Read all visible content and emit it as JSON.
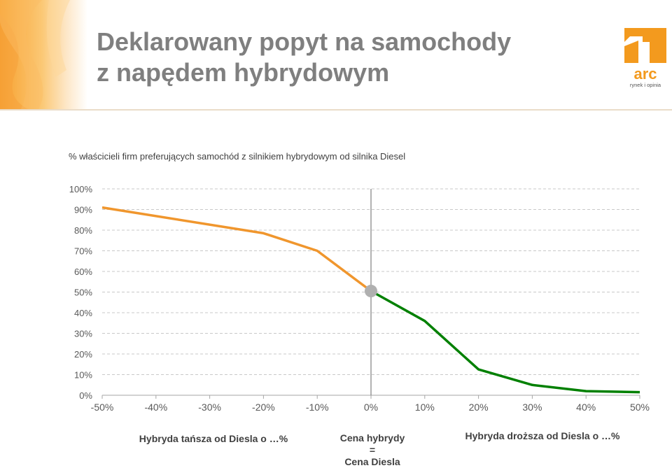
{
  "slide": {
    "title_line1": "Deklarowany popyt na samochody",
    "title_line2": "z napędem hybrydowym"
  },
  "logo": {
    "text": "arc",
    "tagline": "rynek i opinia",
    "color": "#f39a1e"
  },
  "chart_data": {
    "type": "line",
    "title": "% właścicieli firm preferujących samochód z silnikiem hybrydowym od silnika Diesel",
    "xlabel": "",
    "ylabel": "",
    "x": [
      "-50%",
      "-40%",
      "-30%",
      "-20%",
      "-10%",
      "0%",
      "10%",
      "20%",
      "30%",
      "40%",
      "50%"
    ],
    "x_values": [
      -50,
      -40,
      -30,
      -20,
      -10,
      0,
      10,
      20,
      30,
      40,
      50
    ],
    "y_ticks": [
      "0%",
      "10%",
      "20%",
      "30%",
      "40%",
      "50%",
      "60%",
      "70%",
      "80%",
      "90%",
      "100%"
    ],
    "xlim": [
      -50,
      50
    ],
    "ylim": [
      0,
      100
    ],
    "grid": "horizontal-dashed",
    "reference_line_x": 0,
    "series": [
      {
        "color": "#f0962d",
        "points": [
          [
            -50,
            91
          ],
          [
            -20,
            78.5
          ],
          [
            -10,
            70
          ],
          [
            0,
            50.5
          ]
        ]
      },
      {
        "color": "#008000",
        "points": [
          [
            0,
            50.5
          ],
          [
            10,
            36
          ],
          [
            20,
            12.5
          ],
          [
            30,
            5
          ],
          [
            40,
            2
          ],
          [
            50,
            1.5
          ]
        ]
      }
    ],
    "highlight_point": {
      "x": 0,
      "y": 50.5,
      "color": "#b0b0b0"
    }
  },
  "captions": {
    "cheaper": "Hybryda tańsza od Diesla o …%",
    "equal_line1": "Cena hybrydy",
    "equal_line2": "=",
    "equal_line3": "Cena Diesla",
    "pricier": "Hybryda droższa od Diesla o …%"
  }
}
